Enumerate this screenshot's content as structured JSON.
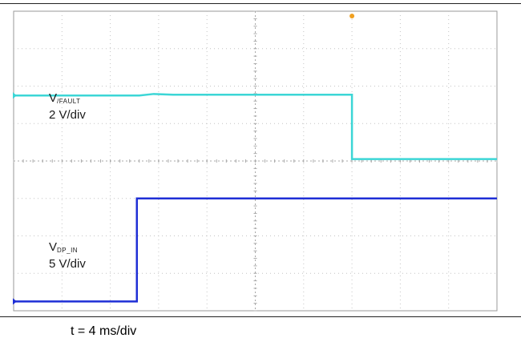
{
  "chart_data": {
    "type": "line",
    "title": "",
    "xlabel": "t = 4 ms/div",
    "ylabel": "",
    "grid": true,
    "divisions": {
      "x": 10,
      "y": 8
    },
    "xlim": [
      0,
      10
    ],
    "ylim": [
      -4,
      4
    ],
    "series": [
      {
        "id": "fault",
        "label_main": "V",
        "label_sub": "/FAULT",
        "scale": "2 V/div",
        "color": "#3cd6d6",
        "x": [
          0,
          2.6,
          2.9,
          3.3,
          7.0,
          7.0,
          10
        ],
        "y": [
          1.75,
          1.75,
          1.79,
          1.77,
          1.77,
          0.05,
          0.05
        ]
      },
      {
        "id": "dp_in",
        "label_main": "V",
        "label_sub": "DP_IN",
        "scale": "5 V/div",
        "color": "#1f2fd6",
        "x": [
          0,
          2.55,
          2.55,
          10
        ],
        "y": [
          -3.75,
          -3.75,
          -1.0,
          -1.0
        ]
      }
    ]
  }
}
